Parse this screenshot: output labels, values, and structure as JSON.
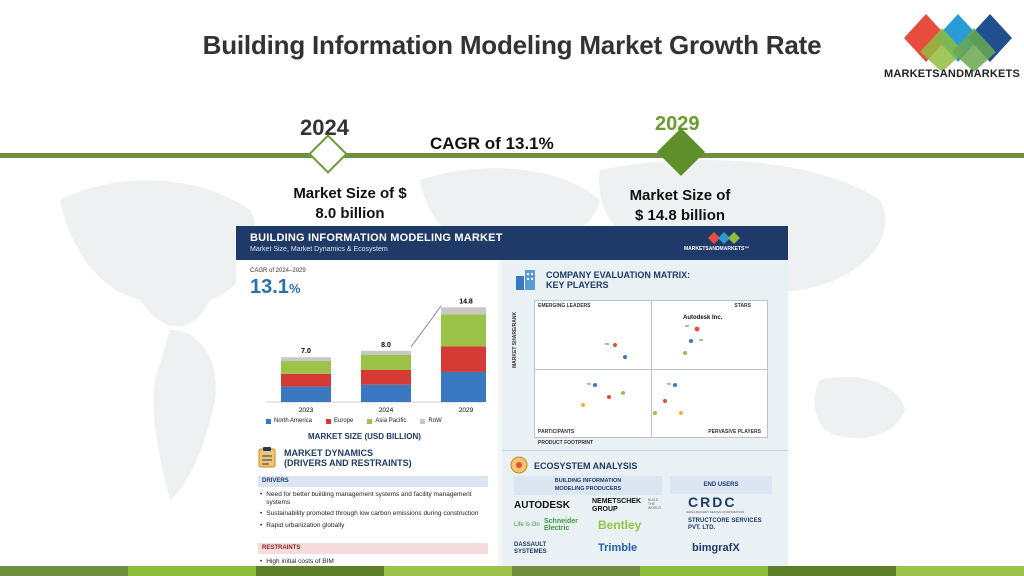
{
  "title": "Building Information Modeling Market Growth Rate",
  "brand": {
    "name": "MARKETSANDMARKETS",
    "colors": [
      "#2a6fb0",
      "#6aa84f",
      "#e74c3c",
      "#8fbc3f",
      "#1f4f8f"
    ]
  },
  "timeline": {
    "start_year": "2024",
    "end_year": "2029",
    "cagr_label": "CAGR of 13.1%",
    "start_size_line1": "Market Size of $",
    "start_size_line2": "8.0 billion",
    "end_size_line1": "Market Size of",
    "end_size_line2": "$ 14.8 billion",
    "line_color": "#6f8f3e",
    "accent_color": "#6a9b2f"
  },
  "infographic": {
    "header_title": "BUILDING INFORMATION MODELING MARKET",
    "header_subtitle": "Market Size, Market Dynamics & Ecosystem",
    "header_logo": "MARKETSANDMARKETS™",
    "cagr_caption": "CAGR of 2024–2029",
    "cagr_value": "13.1",
    "cagr_unit": "%",
    "market_size_title": "MARKET SIZE (USD BILLION)",
    "legend": [
      {
        "label": "North America",
        "color": "#3a78c2"
      },
      {
        "label": "Europe",
        "color": "#d63a35"
      },
      {
        "label": "Asia Pacific",
        "color": "#9cc24a"
      },
      {
        "label": "RoW",
        "color": "#c8c8c8"
      }
    ],
    "dynamics_title_line1": "MARKET DYNAMICS",
    "dynamics_title_line2": "(DRIVERS AND RESTRAINTS)",
    "drivers_label": "DRIVERS",
    "drivers": [
      "Need for better building management systems and facility management systems",
      "Sustainability promoted through low carbon emissions during construction",
      "Rapid urbanization globally"
    ],
    "restraints_label": "RESTRAINTS",
    "restraints": [
      "High initial costs of BIM"
    ],
    "matrix_title_line1": "COMPANY EVALUATION MATRIX:",
    "matrix_title_line2": "KEY PLAYERS",
    "matrix_quadrants": {
      "top_left": "EMERGING LEADERS",
      "top_right": "STARS",
      "bottom_left": "PARTICIPANTS",
      "bottom_right": "PERVASIVE PLAYERS"
    },
    "matrix_y_axis": "MARKET SHARE/RANK",
    "matrix_x_axis": "PRODUCT FOOTPRINT",
    "matrix_leader": "Autodesk Inc.",
    "matrix_point_label": "xx",
    "ecosystem_title": "ECOSYSTEM ANALYSIS",
    "producers_label_line1": "BUILDING INFORMATION",
    "producers_label_line2": "MODELING PRODUCERS",
    "end_users_label": "END USERS",
    "producers": [
      "AUTODESK",
      "NEMETSCHEK GROUP",
      "Schneider Electric",
      "Bentley",
      "DASSAULT SYSTEMES",
      "Trimble"
    ],
    "producer_extras": {
      "nemetschek_tag": "BUILD THE WORLD",
      "schneider_tag": "Life Is On"
    },
    "end_users": [
      "CRDC",
      "STRUCTCORE SERVICES PVT. LTD.",
      "bimgrafX"
    ],
    "end_user_extras": {
      "crdc_tag": "CHINA RAILWAY DESIGN CORPORATION"
    }
  },
  "chart_data": {
    "type": "bar",
    "stacked": true,
    "categories": [
      "2023",
      "2024",
      "2029"
    ],
    "totals": [
      "7.0",
      "8.0",
      "14.8"
    ],
    "series": [
      {
        "name": "North America",
        "values": [
          2.4,
          2.7,
          4.7
        ]
      },
      {
        "name": "Europe",
        "values": [
          2.0,
          2.3,
          4.0
        ]
      },
      {
        "name": "Asia Pacific",
        "values": [
          2.0,
          2.4,
          5.0
        ]
      },
      {
        "name": "RoW",
        "values": [
          0.6,
          0.6,
          1.1
        ]
      }
    ],
    "ylim": [
      0,
      15
    ]
  }
}
